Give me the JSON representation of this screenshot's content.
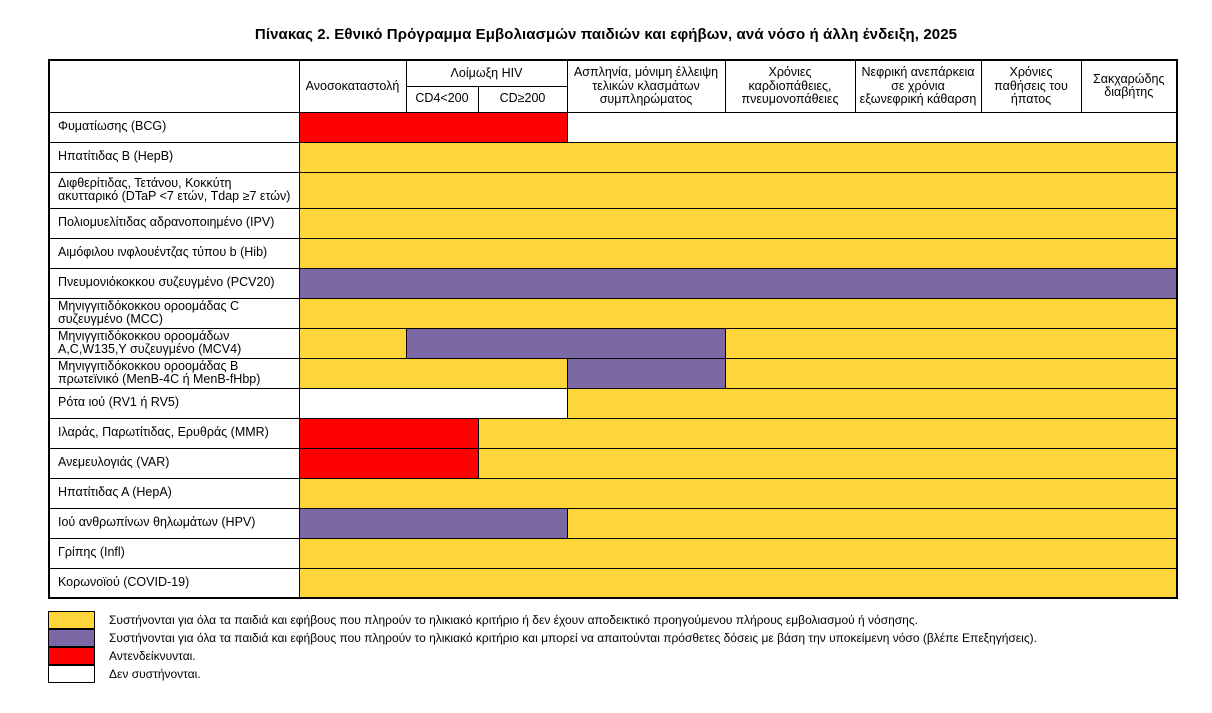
{
  "title": "Πίνακας 2. Εθνικό Πρόγραμμα Εμβολιασμών παιδιών και εφήβων, ανά νόσο ή άλλη ένδειξη, 2025",
  "colors": {
    "yellow": "#FFD639",
    "purple": "#7D68A6",
    "red": "#FF0000",
    "white": "#FFFFFF"
  },
  "header": {
    "corner": "",
    "immunosuppression": "Ανοσοκαταστολή",
    "hiv": "Λοίμωξη HIV",
    "cd4_low": "CD4<200",
    "cd4_high": "CD≥200",
    "asplenia": "Ασπληνία, μόνιμη έλλειψη τελικών κλασμάτων συμπληρώματος",
    "cardio": "Χρόνιες καρδιοπάθειες, πνευμονοπάθειες",
    "renal": "Νεφρική ανεπάρκεια σε χρόνια εξωνεφρική κάθαρση",
    "liver": "Χρόνιες παθήσεις του ήπατος",
    "diabetes": "Σακχαρώδης διαβήτης"
  },
  "rows": [
    {
      "label": "Φυματίωσης (BCG)",
      "tall": false,
      "spans": [
        {
          "color": "red",
          "cols": 3
        },
        {
          "color": "white",
          "cols": 5
        }
      ]
    },
    {
      "label": "Ηπατίτιδας Β (HepB)",
      "tall": false,
      "spans": [
        {
          "color": "yellow",
          "cols": 8
        }
      ]
    },
    {
      "label": "Διφθερίτιδας, Τετάνου, Κοκκύτη ακυτταρικό (DTaP <7 ετών, Tdap ≥7 ετών)",
      "tall": true,
      "spans": [
        {
          "color": "yellow",
          "cols": 8
        }
      ]
    },
    {
      "label": "Πολιομυελίτιδας αδρανοποιημένο (IPV)",
      "tall": false,
      "spans": [
        {
          "color": "yellow",
          "cols": 8
        }
      ]
    },
    {
      "label": "Αιμόφιλου ινφλουέντζας τύπου b (Hib)",
      "tall": false,
      "spans": [
        {
          "color": "yellow",
          "cols": 8
        }
      ]
    },
    {
      "label": "Πνευμονιόκοκκου συζευγμένο (PCV20)",
      "tall": false,
      "spans": [
        {
          "color": "purple",
          "cols": 8
        }
      ]
    },
    {
      "label": "Μηνιγγιτιδόκοκκου οροομάδας C συζευγμένο (MCC)",
      "tall": false,
      "spans": [
        {
          "color": "yellow",
          "cols": 8
        }
      ]
    },
    {
      "label": "Μηνιγγιτιδόκοκκου οροομάδων A,C,W135,Y συζευγμένο (MCV4)",
      "tall": false,
      "spans": [
        {
          "color": "yellow",
          "cols": 1
        },
        {
          "color": "purple",
          "cols": 3
        },
        {
          "color": "yellow",
          "cols": 4
        }
      ]
    },
    {
      "label": "Μηνιγγιτιδόκοκκου οροομάδας Β πρωτεϊνικό (MenB-4C ή MenB-fHbp)",
      "tall": false,
      "spans": [
        {
          "color": "yellow",
          "cols": 3
        },
        {
          "color": "purple",
          "cols": 1
        },
        {
          "color": "yellow",
          "cols": 4
        }
      ]
    },
    {
      "label": "Ρότα ιού (RV1 ή RV5)",
      "tall": false,
      "spans": [
        {
          "color": "white",
          "cols": 3
        },
        {
          "color": "yellow",
          "cols": 5
        }
      ]
    },
    {
      "label": "Ιλαράς, Παρωτίτιδας, Ερυθράς (MMR)",
      "tall": false,
      "spans": [
        {
          "color": "red",
          "cols": 2
        },
        {
          "color": "yellow",
          "cols": 6
        }
      ]
    },
    {
      "label": "Ανεμευλογιάς (VAR)",
      "tall": false,
      "spans": [
        {
          "color": "red",
          "cols": 2
        },
        {
          "color": "yellow",
          "cols": 6
        }
      ]
    },
    {
      "label": "Ηπατίτιδας Α (HepA)",
      "tall": false,
      "spans": [
        {
          "color": "yellow",
          "cols": 8
        }
      ]
    },
    {
      "label": "Ιού ανθρωπίνων θηλωμάτων (HPV)",
      "tall": false,
      "spans": [
        {
          "color": "purple",
          "cols": 3
        },
        {
          "color": "yellow",
          "cols": 5
        }
      ]
    },
    {
      "label": "Γρίπης (Infl)",
      "tall": false,
      "spans": [
        {
          "color": "yellow",
          "cols": 8
        }
      ]
    },
    {
      "label": "Κορωνοϊού (COVID-19)",
      "tall": false,
      "spans": [
        {
          "color": "yellow",
          "cols": 8
        }
      ]
    }
  ],
  "legend": [
    {
      "color": "yellow",
      "text": "Συστήνονται για όλα τα παιδιά και εφήβους που  πληρούν το ηλικιακό κριτήριο ή δεν έχουν αποδεικτικό προηγούμενου πλήρους εμβολιασμού ή νόσησης."
    },
    {
      "color": "purple",
      "text": "Συστήνονται για όλα τα παιδιά και εφήβους που πληρούν το ηλικιακό κριτήριο και μπορεί να απαιτούνται πρόσθετες δόσεις με βάση την υποκείμενη νόσο (βλέπε Επεξηγήσεις)."
    },
    {
      "color": "red",
      "text": "Αντενδείκνυνται."
    },
    {
      "color": "white",
      "text": "Δεν συστήνονται."
    }
  ]
}
